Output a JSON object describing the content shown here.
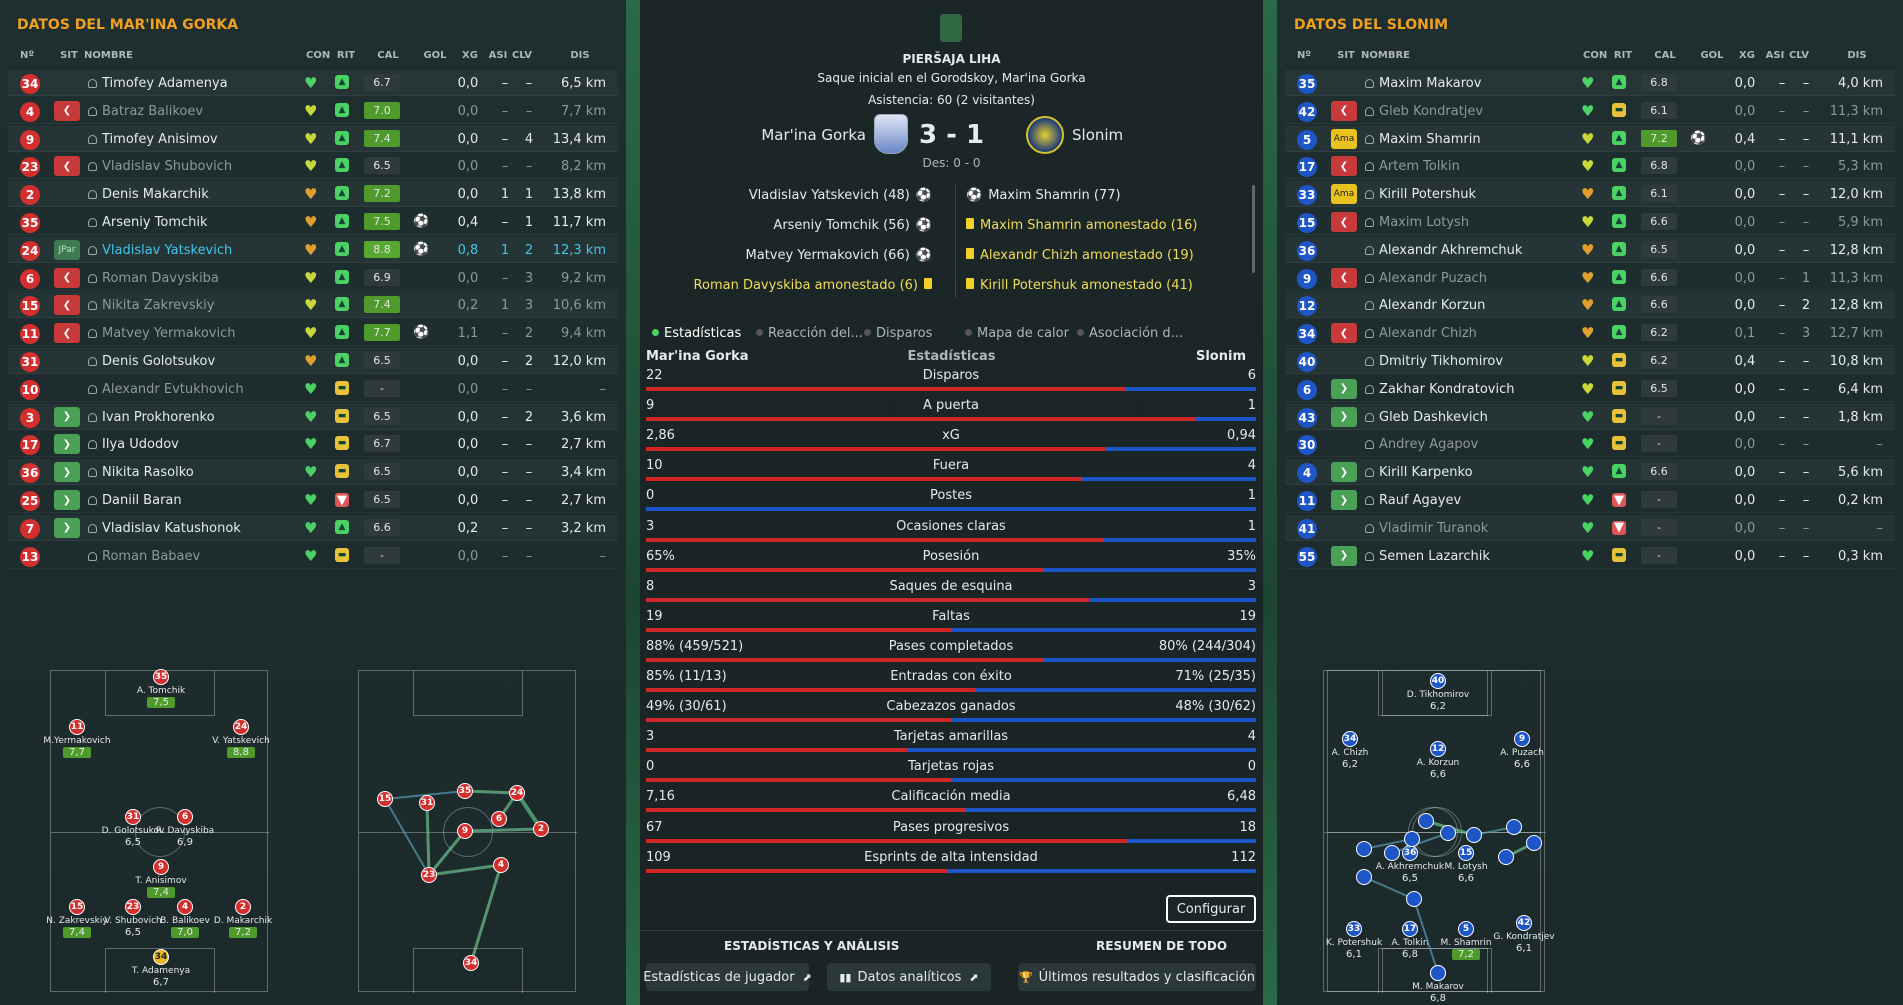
{
  "left": {
    "title": "DATOS DEL MAR'INA GORKA",
    "headers": {
      "num": "Nº",
      "sit": "SIT",
      "name": "NOMBRE",
      "con": "CON",
      "rit": "RIT",
      "cal": "CAL",
      "gol": "GOL",
      "xg": "XG",
      "asi": "ASI",
      "clv": "CLV",
      "dis": "DIS"
    },
    "players": [
      {
        "num": "34",
        "sit": "",
        "name": "Timofey Adamenya",
        "heart": "g",
        "rit": "g",
        "cal": "6.7",
        "calc": "",
        "goal": "",
        "xg": "0,0",
        "asi": "–",
        "clv": "–",
        "dis": "6,5 km",
        "dim": false
      },
      {
        "num": "4",
        "sit": "out",
        "name": "Batraz Balikoev",
        "heart": "y",
        "rit": "g",
        "cal": "7.0",
        "calc": "g1",
        "goal": "",
        "xg": "0,0",
        "asi": "–",
        "clv": "–",
        "dis": "7,7 km",
        "dim": true
      },
      {
        "num": "9",
        "sit": "",
        "name": "Timofey Anisimov",
        "heart": "y",
        "rit": "g",
        "cal": "7.4",
        "calc": "g1",
        "goal": "",
        "xg": "0,0",
        "asi": "–",
        "clv": "4",
        "dis": "13,4 km",
        "dim": false
      },
      {
        "num": "23",
        "sit": "out",
        "name": "Vladislav Shubovich",
        "heart": "y",
        "rit": "g",
        "cal": "6.5",
        "calc": "",
        "goal": "",
        "xg": "0,0",
        "asi": "–",
        "clv": "–",
        "dis": "8,2 km",
        "dim": true
      },
      {
        "num": "2",
        "sit": "",
        "name": "Denis Makarchik",
        "heart": "o",
        "rit": "g",
        "cal": "7.2",
        "calc": "g1",
        "goal": "",
        "xg": "0,0",
        "asi": "1",
        "clv": "1",
        "dis": "13,8 km",
        "dim": false
      },
      {
        "num": "35",
        "sit": "",
        "name": "Arseniy Tomchik",
        "heart": "o",
        "rit": "g",
        "cal": "7.5",
        "calc": "g1",
        "goal": "⚽",
        "xg": "0,4",
        "asi": "–",
        "clv": "1",
        "dis": "11,7 km",
        "dim": false
      },
      {
        "num": "24",
        "sit": "jpar",
        "name": "Vladislav Yatskevich",
        "heart": "o",
        "rit": "g",
        "cal": "8.8",
        "calc": "g3",
        "goal": "⚽",
        "xg": "0,8",
        "asi": "1",
        "clv": "2",
        "dis": "12,3 km",
        "dim": false,
        "hl": true
      },
      {
        "num": "6",
        "sit": "out",
        "name": "Roman Davyskiba",
        "heart": "y",
        "rit": "g",
        "cal": "6.9",
        "calc": "",
        "goal": "",
        "xg": "0,0",
        "asi": "–",
        "clv": "3",
        "dis": "9,2 km",
        "dim": true
      },
      {
        "num": "15",
        "sit": "out",
        "name": "Nikita Zakrevskiy",
        "heart": "y",
        "rit": "g",
        "cal": "7.4",
        "calc": "g1",
        "goal": "",
        "xg": "0,2",
        "asi": "1",
        "clv": "3",
        "dis": "10,6 km",
        "dim": true
      },
      {
        "num": "11",
        "sit": "out",
        "name": "Matvey Yermakovich",
        "heart": "y",
        "rit": "g",
        "cal": "7.7",
        "calc": "g1",
        "goal": "⚽",
        "xg": "1,1",
        "asi": "–",
        "clv": "2",
        "dis": "9,4 km",
        "dim": true
      },
      {
        "num": "31",
        "sit": "",
        "name": "Denis Golotsukov",
        "heart": "o",
        "rit": "g",
        "cal": "6.5",
        "calc": "",
        "goal": "",
        "xg": "0,0",
        "asi": "–",
        "clv": "2",
        "dis": "12,0 km",
        "dim": false
      },
      {
        "num": "10",
        "sit": "",
        "name": "Alexandr Evtukhovich",
        "heart": "g",
        "rit": "y",
        "cal": "-",
        "calc": "",
        "goal": "",
        "xg": "0,0",
        "asi": "–",
        "clv": "–",
        "dis": "–",
        "dim": true
      },
      {
        "num": "3",
        "sit": "in",
        "name": "Ivan Prokhorenko",
        "heart": "g",
        "rit": "y",
        "cal": "6.5",
        "calc": "",
        "goal": "",
        "xg": "0,0",
        "asi": "–",
        "clv": "2",
        "dis": "3,6 km",
        "dim": false
      },
      {
        "num": "17",
        "sit": "in",
        "name": "Ilya Udodov",
        "heart": "g",
        "rit": "y",
        "cal": "6.7",
        "calc": "",
        "goal": "",
        "xg": "0,0",
        "asi": "–",
        "clv": "–",
        "dis": "2,7 km",
        "dim": false
      },
      {
        "num": "36",
        "sit": "in",
        "name": "Nikita Rasolko",
        "heart": "g",
        "rit": "y",
        "cal": "6.5",
        "calc": "",
        "goal": "",
        "xg": "0,0",
        "asi": "–",
        "clv": "–",
        "dis": "3,4 km",
        "dim": false
      },
      {
        "num": "25",
        "sit": "in",
        "name": "Daniil Baran",
        "heart": "g",
        "rit": "r",
        "cal": "6.5",
        "calc": "",
        "goal": "",
        "xg": "0,0",
        "asi": "–",
        "clv": "–",
        "dis": "2,7 km",
        "dim": false
      },
      {
        "num": "7",
        "sit": "in",
        "name": "Vladislav Katushonok",
        "heart": "g",
        "rit": "g",
        "cal": "6.6",
        "calc": "",
        "goal": "",
        "xg": "0,2",
        "asi": "–",
        "clv": "–",
        "dis": "3,2 km",
        "dim": false
      },
      {
        "num": "13",
        "sit": "",
        "name": "Roman Babaev",
        "heart": "g",
        "rit": "y",
        "cal": "-",
        "calc": "",
        "goal": "",
        "xg": "0,0",
        "asi": "–",
        "clv": "–",
        "dis": "–",
        "dim": true
      }
    ]
  },
  "right": {
    "title": "DATOS DEL SLONIM",
    "headers": {
      "num": "Nº",
      "sit": "SIT",
      "name": "NOMBRE",
      "con": "CON",
      "rit": "RIT",
      "cal": "CAL",
      "gol": "GOL",
      "xg": "XG",
      "asi": "ASI",
      "clv": "CLV",
      "dis": "DIS"
    },
    "players": [
      {
        "num": "35",
        "sit": "",
        "name": "Maxim Makarov",
        "heart": "g",
        "rit": "g",
        "cal": "6.8",
        "calc": "",
        "goal": "",
        "xg": "0,0",
        "asi": "–",
        "clv": "–",
        "dis": "4,0 km",
        "dim": false
      },
      {
        "num": "42",
        "sit": "out",
        "name": "Gleb Kondratjev",
        "heart": "g",
        "rit": "y",
        "cal": "6.1",
        "calc": "",
        "goal": "",
        "xg": "0,0",
        "asi": "–",
        "clv": "–",
        "dis": "11,3 km",
        "dim": true
      },
      {
        "num": "5",
        "sit": "ama",
        "name": "Maxim Shamrin",
        "heart": "y",
        "rit": "g",
        "cal": "7.2",
        "calc": "g1",
        "goal": "⚽",
        "xg": "0,4",
        "asi": "–",
        "clv": "–",
        "dis": "11,1 km",
        "dim": false
      },
      {
        "num": "17",
        "sit": "out",
        "name": "Artem Tolkin",
        "heart": "y",
        "rit": "g",
        "cal": "6.8",
        "calc": "",
        "goal": "",
        "xg": "0,0",
        "asi": "–",
        "clv": "–",
        "dis": "5,3 km",
        "dim": true
      },
      {
        "num": "33",
        "sit": "ama",
        "name": "Kirill Potershuk",
        "heart": "o",
        "rit": "g",
        "cal": "6.1",
        "calc": "",
        "goal": "",
        "xg": "0,0",
        "asi": "–",
        "clv": "–",
        "dis": "12,0 km",
        "dim": false
      },
      {
        "num": "15",
        "sit": "out",
        "name": "Maxim Lotysh",
        "heart": "y",
        "rit": "g",
        "cal": "6.6",
        "calc": "",
        "goal": "",
        "xg": "0,0",
        "asi": "–",
        "clv": "–",
        "dis": "5,9 km",
        "dim": true
      },
      {
        "num": "36",
        "sit": "",
        "name": "Alexandr Akhremchuk",
        "heart": "o",
        "rit": "g",
        "cal": "6.5",
        "calc": "",
        "goal": "",
        "xg": "0,0",
        "asi": "–",
        "clv": "–",
        "dis": "12,8 km",
        "dim": false
      },
      {
        "num": "9",
        "sit": "out",
        "name": "Alexandr Puzach",
        "heart": "o",
        "rit": "g",
        "cal": "6.6",
        "calc": "",
        "goal": "",
        "xg": "0,0",
        "asi": "–",
        "clv": "1",
        "dis": "11,3 km",
        "dim": true
      },
      {
        "num": "12",
        "sit": "",
        "name": "Alexandr Korzun",
        "heart": "o",
        "rit": "g",
        "cal": "6.6",
        "calc": "",
        "goal": "",
        "xg": "0,0",
        "asi": "–",
        "clv": "2",
        "dis": "12,8 km",
        "dim": false
      },
      {
        "num": "34",
        "sit": "out",
        "name": "Alexandr Chizh",
        "heart": "o",
        "rit": "g",
        "cal": "6.2",
        "calc": "",
        "goal": "",
        "xg": "0,1",
        "asi": "–",
        "clv": "3",
        "dis": "12,7 km",
        "dim": true
      },
      {
        "num": "40",
        "sit": "",
        "name": "Dmitriy Tikhomirov",
        "heart": "y",
        "rit": "y",
        "cal": "6.2",
        "calc": "",
        "goal": "",
        "xg": "0,4",
        "asi": "–",
        "clv": "–",
        "dis": "10,8 km",
        "dim": false
      },
      {
        "num": "6",
        "sit": "in",
        "name": "Zakhar Kondratovich",
        "heart": "y",
        "rit": "y",
        "cal": "6.5",
        "calc": "",
        "goal": "",
        "xg": "0,0",
        "asi": "–",
        "clv": "–",
        "dis": "6,4 km",
        "dim": false
      },
      {
        "num": "43",
        "sit": "in",
        "name": "Gleb Dashkevich",
        "heart": "g",
        "rit": "y",
        "cal": "-",
        "calc": "",
        "goal": "",
        "xg": "0,0",
        "asi": "–",
        "clv": "–",
        "dis": "1,8 km",
        "dim": false
      },
      {
        "num": "30",
        "sit": "",
        "name": "Andrey Agapov",
        "heart": "g",
        "rit": "y",
        "cal": "-",
        "calc": "",
        "goal": "",
        "xg": "0,0",
        "asi": "–",
        "clv": "–",
        "dis": "–",
        "dim": true
      },
      {
        "num": "4",
        "sit": "in",
        "name": "Kirill Karpenko",
        "heart": "g",
        "rit": "g",
        "cal": "6.6",
        "calc": "",
        "goal": "",
        "xg": "0,0",
        "asi": "–",
        "clv": "–",
        "dis": "5,6 km",
        "dim": false
      },
      {
        "num": "11",
        "sit": "in",
        "name": "Rauf Agayev",
        "heart": "g",
        "rit": "r",
        "cal": "-",
        "calc": "",
        "goal": "",
        "xg": "0,0",
        "asi": "–",
        "clv": "–",
        "dis": "0,2 km",
        "dim": false
      },
      {
        "num": "41",
        "sit": "",
        "name": "Vladimir Turanok",
        "heart": "g",
        "rit": "r",
        "cal": "-",
        "calc": "",
        "goal": "",
        "xg": "0,0",
        "asi": "–",
        "clv": "–",
        "dis": "–",
        "dim": true
      },
      {
        "num": "55",
        "sit": "in",
        "name": "Semen Lazarchik",
        "heart": "g",
        "rit": "y",
        "cal": "-",
        "calc": "",
        "goal": "",
        "xg": "0,0",
        "asi": "–",
        "clv": "–",
        "dis": "0,3 km",
        "dim": false
      }
    ]
  },
  "match": {
    "league": "PIERŠAJA LIHA",
    "kickoff": "Saque inicial en el Gorodskoy, Mar'ina Gorka",
    "attendance": "Asistencia: 60 (2 visitantes)",
    "home": "Mar'ina Gorka",
    "away": "Slonim",
    "score": "3 - 1",
    "halftime": "Des: 0 - 0",
    "home_events": [
      {
        "text": "Vladislav Yatskevich (48)",
        "type": "goal"
      },
      {
        "text": "Arseniy Tomchik (56)",
        "type": "goal"
      },
      {
        "text": "Matvey Yermakovich (66)",
        "type": "goal"
      },
      {
        "text": "Roman Davyskiba amonestado (6)",
        "type": "yellow"
      }
    ],
    "away_events": [
      {
        "text": "Maxim Shamrin (77)",
        "type": "goal"
      },
      {
        "text": "Maxim Shamrin amonestado (16)",
        "type": "yellow"
      },
      {
        "text": "Alexandr Chizh amonestado (19)",
        "type": "yellow"
      },
      {
        "text": "Kirill Potershuk amonestado (41)",
        "type": "yellow"
      }
    ]
  },
  "tabs": [
    "Estadísticas",
    "Reacción del...",
    "Disparos",
    "Mapa de calor",
    "Asociación d..."
  ],
  "stats_header": {
    "home": "Mar'ina Gorka",
    "title": "Estadísticas",
    "away": "Slonim"
  },
  "stats": [
    {
      "label": "Disparos",
      "home": "22",
      "away": "6",
      "ratio": 0.786
    },
    {
      "label": "A puerta",
      "home": "9",
      "away": "1",
      "ratio": 0.9
    },
    {
      "label": "xG",
      "home": "2,86",
      "away": "0,94",
      "ratio": 0.753
    },
    {
      "label": "Fuera",
      "home": "10",
      "away": "4",
      "ratio": 0.714
    },
    {
      "label": "Postes",
      "home": "0",
      "away": "1",
      "ratio": 0.0
    },
    {
      "label": "Ocasiones claras",
      "home": "3",
      "away": "1",
      "ratio": 0.75
    },
    {
      "label": "Posesión",
      "home": "65%",
      "away": "35%",
      "ratio": 0.65
    },
    {
      "label": "Saques de esquina",
      "home": "8",
      "away": "3",
      "ratio": 0.727
    },
    {
      "label": "Faltas",
      "home": "19",
      "away": "19",
      "ratio": 0.5
    },
    {
      "label": "Pases completados",
      "home": "88% (459/521)",
      "away": "80% (244/304)",
      "ratio": 0.65
    },
    {
      "label": "Entradas con éxito",
      "home": "85% (11/13)",
      "away": "71% (25/35)",
      "ratio": 0.54
    },
    {
      "label": "Cabezazos ganados",
      "home": "49% (30/61)",
      "away": "48% (30/62)",
      "ratio": 0.5
    },
    {
      "label": "Tarjetas amarillas",
      "home": "3",
      "away": "4",
      "ratio": 0.43
    },
    {
      "label": "Tarjetas rojas",
      "home": "0",
      "away": "0",
      "ratio": 0.5
    },
    {
      "label": "Calificación media",
      "home": "7,16",
      "away": "6,48",
      "ratio": 0.525
    },
    {
      "label": "Pases progresivos",
      "home": "67",
      "away": "18",
      "ratio": 0.788
    },
    {
      "label": "Esprints de alta intensidad",
      "home": "109",
      "away": "112",
      "ratio": 0.493
    }
  ],
  "buttons": {
    "configure": "Configurar",
    "section_left": "ESTADÍSTICAS Y ANÁLISIS",
    "section_right": "RESUMEN DE TODO",
    "player_stats": "Estadísticas de jugador",
    "analytics": "Datos analíticos",
    "results": "Últimos resultados y clasificación"
  },
  "home_formation": [
    {
      "num": "35",
      "label": "A. Tomchik",
      "rate": "7,5",
      "green": true
    },
    {
      "num": "11",
      "label": "M.Yermakovich",
      "rate": "7,7",
      "green": true
    },
    {
      "num": "24",
      "label": "V. Yatskevich",
      "rate": "8,8",
      "green": true
    },
    {
      "num": "31",
      "label": "D. Golotsukov",
      "rate": "6,5",
      "green": false
    },
    {
      "num": "6",
      "label": "R. Davyskiba",
      "rate": "6,9",
      "green": false
    },
    {
      "num": "9",
      "label": "T. Anisimov",
      "rate": "7,4",
      "green": true
    },
    {
      "num": "15",
      "label": "N. Zakrevskiy",
      "rate": "7,4",
      "green": true
    },
    {
      "num": "23",
      "label": "V. Shubovich",
      "rate": "6,5",
      "green": false
    },
    {
      "num": "4",
      "label": "B. Balikoev",
      "rate": "7,0",
      "green": true
    },
    {
      "num": "2",
      "label": "D. Makarchik",
      "rate": "7,2",
      "green": true
    },
    {
      "num": "34",
      "label": "T. Adamenya",
      "rate": "6,7",
      "green": false
    }
  ],
  "away_formation": [
    {
      "num": "40",
      "label": "D. Tikhomirov",
      "rate": "6,2",
      "green": false
    },
    {
      "num": "34",
      "label": "A. Chizh",
      "rate": "6,2",
      "green": false
    },
    {
      "num": "12",
      "label": "A. Korzun",
      "rate": "6,6",
      "green": false
    },
    {
      "num": "9",
      "label": "A. Puzach",
      "rate": "6,6",
      "green": false
    },
    {
      "num": "36",
      "label": "A. Akhremchuk",
      "rate": "6,5",
      "green": false
    },
    {
      "num": "15",
      "label": "M. Lotysh",
      "rate": "6,6",
      "green": false
    },
    {
      "num": "33",
      "label": "K. Potershuk",
      "rate": "6,1",
      "green": false
    },
    {
      "num": "17",
      "label": "A. Tolkin",
      "rate": "6,8",
      "green": false
    },
    {
      "num": "5",
      "label": "M. Shamrin",
      "rate": "7,2",
      "green": true
    },
    {
      "num": "42",
      "label": "G. Kondratjev",
      "rate": "6,1",
      "green": false
    },
    {
      "num": "35",
      "label": "M. Makarov",
      "rate": "6,8",
      "green": false
    }
  ]
}
